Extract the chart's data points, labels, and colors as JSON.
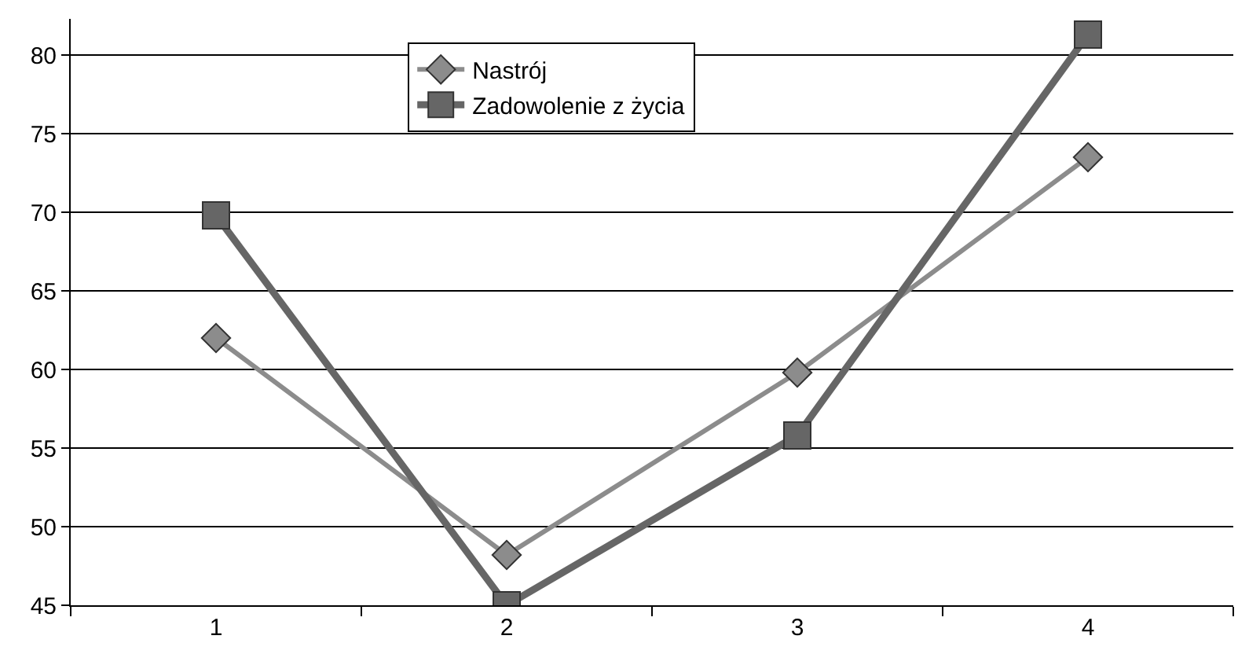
{
  "chart_data": {
    "type": "line",
    "categories": [
      "1",
      "2",
      "3",
      "4"
    ],
    "series": [
      {
        "name": "Nastrój",
        "color": "#8c8c8c",
        "marker": "diamond",
        "values": [
          62.0,
          48.2,
          59.8,
          73.5
        ]
      },
      {
        "name": "Zadowolenie z życia",
        "color": "#666666",
        "marker": "square",
        "values": [
          69.8,
          45.0,
          55.8,
          81.3
        ]
      }
    ],
    "ylim": [
      45,
      82.3
    ],
    "yticks": [
      45,
      50,
      55,
      60,
      65,
      70,
      75,
      80
    ],
    "grid": "y",
    "legend": "top"
  }
}
